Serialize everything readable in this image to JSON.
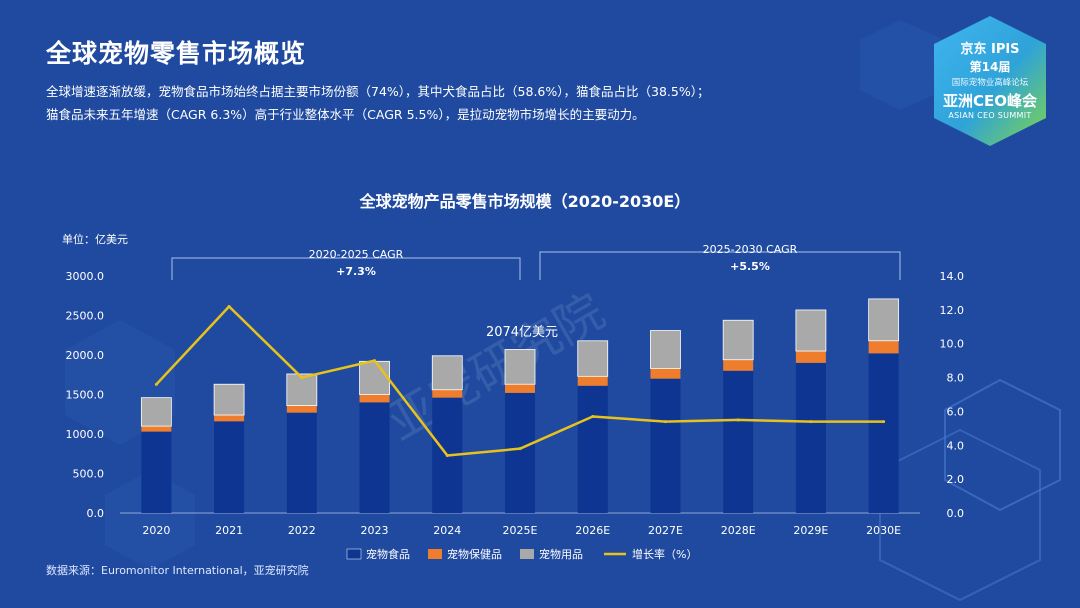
{
  "page": {
    "title": "全球宠物零售市场概览",
    "summary_line1": "全球增速逐渐放缓，宠物食品市场始终占据主要市场份额（74%），其中犬食品占比（58.6%），猫食品占比（38.5%）；",
    "summary_line2": "猫食品未来五年增速（CAGR 6.3%）高于行业整体水平（CAGR 5.5%），是拉动宠物市场增长的主要动力。",
    "source": "数据来源：Euromonitor International，亚宠研究院",
    "watermark": "亚宠研究院"
  },
  "badge": {
    "line1": "京东  IPIS",
    "line2": "第14届",
    "line3": "国际宠物业高峰论坛",
    "line4": "亚洲CEO峰会",
    "line5": "ASIAN CEO SUMMIT"
  },
  "colors": {
    "background": "#1f4aa0",
    "food": "#0d3591",
    "health": "#ee7d2d",
    "supplies": "#a9a9a9",
    "growth": "#e8c21c"
  },
  "chart_data": {
    "type": "bar+line",
    "title": "全球宠物产品零售市场规模（2020-2030E）",
    "unit_label": "单位：亿美元",
    "categories": [
      "2020",
      "2021",
      "2022",
      "2023",
      "2024",
      "2025E",
      "2026E",
      "2027E",
      "2028E",
      "2029E",
      "2030E"
    ],
    "series": [
      {
        "name": "宠物食品",
        "kind": "stacked-bar",
        "axis": "left",
        "values": [
          1030,
          1160,
          1270,
          1400,
          1460,
          1520,
          1610,
          1700,
          1800,
          1900,
          2020
        ]
      },
      {
        "name": "宠物保健品",
        "kind": "stacked-bar",
        "axis": "left",
        "values": [
          70,
          80,
          90,
          100,
          100,
          110,
          120,
          130,
          140,
          150,
          160
        ]
      },
      {
        "name": "宠物用品",
        "kind": "stacked-bar",
        "axis": "left",
        "values": [
          360,
          390,
          400,
          420,
          430,
          440,
          450,
          480,
          500,
          520,
          530
        ]
      },
      {
        "name": "增长率（%）",
        "kind": "line",
        "axis": "right",
        "values": [
          7.6,
          12.2,
          8.0,
          9.0,
          3.4,
          3.8,
          5.7,
          5.4,
          5.5,
          5.4,
          5.4
        ]
      }
    ],
    "ylim_left": [
      0,
      3000
    ],
    "yticks_left": [
      "0.0",
      "500.0",
      "1000.0",
      "1500.0",
      "2000.0",
      "2500.0",
      "3000.0"
    ],
    "ylim_right": [
      0,
      14
    ],
    "yticks_right": [
      "0.0",
      "2.0",
      "4.0",
      "6.0",
      "8.0",
      "10.0",
      "12.0",
      "14.0"
    ],
    "annotations": [
      {
        "text": "2020-2025 CAGR",
        "value": "+7.3%"
      },
      {
        "text": "2025-2030 CAGR",
        "value": "+5.5%"
      },
      {
        "text": "2074亿美元"
      }
    ],
    "legend_position": "bottom"
  }
}
